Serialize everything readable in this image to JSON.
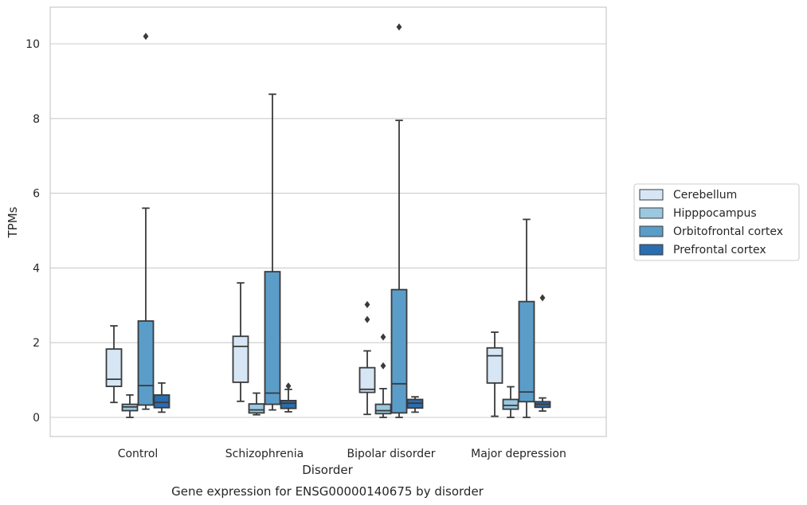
{
  "caption": "Gene expression for ENSG00000140675 by disorder",
  "chart_data": {
    "type": "box",
    "title": "",
    "xlabel": "Disorder",
    "ylabel": "TPMs",
    "ylim": [
      -0.5,
      11
    ],
    "yticks": [
      0,
      2,
      4,
      6,
      8,
      10
    ],
    "grid": "y",
    "legend_position": "right",
    "categories": [
      "Control",
      "Schizophrenia",
      "Bipolar disorder",
      "Major depression"
    ],
    "series": [
      {
        "name": "Cerebellum",
        "color": "#d6e6f4",
        "boxes": [
          {
            "whisker_low": 0.4,
            "q1": 0.83,
            "median": 1.02,
            "q3": 1.83,
            "whisker_high": 2.45,
            "outliers": []
          },
          {
            "whisker_low": 0.43,
            "q1": 0.94,
            "median": 1.9,
            "q3": 2.17,
            "whisker_high": 3.6,
            "outliers": []
          },
          {
            "whisker_low": 0.08,
            "q1": 0.67,
            "median": 0.75,
            "q3": 1.33,
            "whisker_high": 1.78,
            "outliers": [
              2.62,
              3.02
            ]
          },
          {
            "whisker_low": 0.03,
            "q1": 0.92,
            "median": 1.65,
            "q3": 1.86,
            "whisker_high": 2.28,
            "outliers": []
          }
        ]
      },
      {
        "name": "Hipppocampus",
        "color": "#9ac8e0",
        "boxes": [
          {
            "whisker_low": 0.0,
            "q1": 0.18,
            "median": 0.28,
            "q3": 0.35,
            "whisker_high": 0.6,
            "outliers": []
          },
          {
            "whisker_low": 0.07,
            "q1": 0.12,
            "median": 0.2,
            "q3": 0.36,
            "whisker_high": 0.65,
            "outliers": []
          },
          {
            "whisker_low": 0.0,
            "q1": 0.1,
            "median": 0.18,
            "q3": 0.35,
            "whisker_high": 0.77,
            "outliers": [
              1.38,
              2.15
            ]
          },
          {
            "whisker_low": 0.0,
            "q1": 0.22,
            "median": 0.32,
            "q3": 0.48,
            "whisker_high": 0.82,
            "outliers": []
          }
        ]
      },
      {
        "name": "Orbitofrontal cortex",
        "color": "#5b9dc9",
        "boxes": [
          {
            "whisker_low": 0.22,
            "q1": 0.33,
            "median": 0.85,
            "q3": 2.58,
            "whisker_high": 5.6,
            "outliers": [
              10.2
            ]
          },
          {
            "whisker_low": 0.2,
            "q1": 0.35,
            "median": 0.65,
            "q3": 3.9,
            "whisker_high": 8.65,
            "outliers": []
          },
          {
            "whisker_low": 0.0,
            "q1": 0.12,
            "median": 0.9,
            "q3": 3.42,
            "whisker_high": 7.95,
            "outliers": [
              10.45
            ]
          },
          {
            "whisker_low": 0.0,
            "q1": 0.42,
            "median": 0.68,
            "q3": 3.1,
            "whisker_high": 5.3,
            "outliers": []
          }
        ]
      },
      {
        "name": "Prefrontal cortex",
        "color": "#2a6db0",
        "boxes": [
          {
            "whisker_low": 0.14,
            "q1": 0.26,
            "median": 0.4,
            "q3": 0.6,
            "whisker_high": 0.92,
            "outliers": []
          },
          {
            "whisker_low": 0.15,
            "q1": 0.24,
            "median": 0.38,
            "q3": 0.45,
            "whisker_high": 0.75,
            "outliers": [
              0.84
            ]
          },
          {
            "whisker_low": 0.14,
            "q1": 0.25,
            "median": 0.38,
            "q3": 0.48,
            "whisker_high": 0.55,
            "outliers": []
          },
          {
            "whisker_low": 0.17,
            "q1": 0.27,
            "median": 0.35,
            "q3": 0.42,
            "whisker_high": 0.52,
            "outliers": [
              3.2
            ]
          }
        ]
      }
    ]
  }
}
